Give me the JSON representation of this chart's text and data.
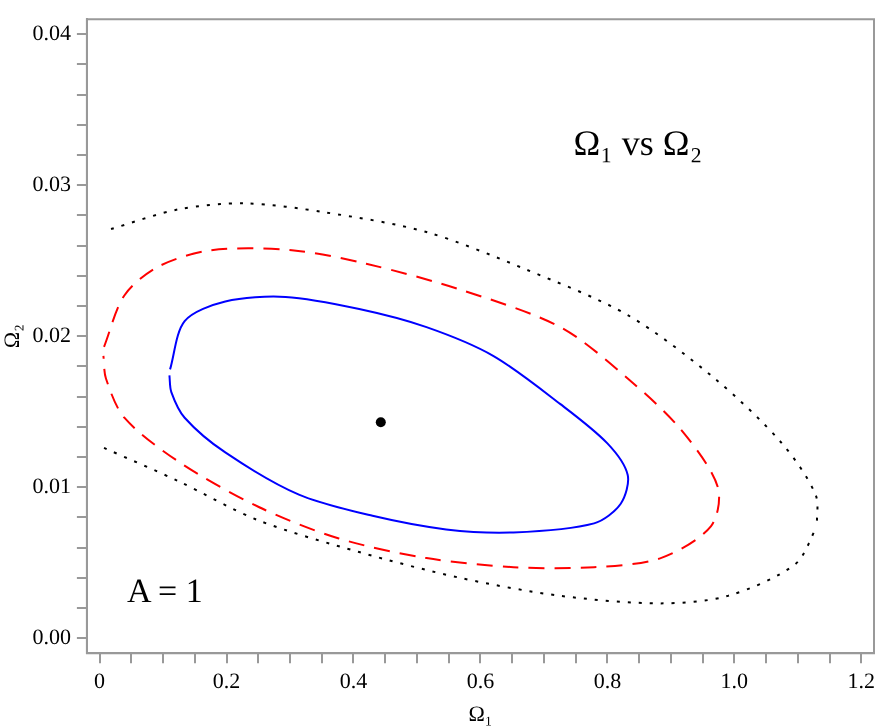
{
  "chart_data": {
    "type": "line",
    "title": "Ω₁ vs Ω₂",
    "xlabel": "Ω₁",
    "ylabel": "Ω₂",
    "annotations": [
      "A = 1"
    ],
    "xlim": [
      -0.02,
      1.22
    ],
    "ylim": [
      -0.001,
      0.041
    ],
    "xticks": [
      0,
      {
        "value": 0.05,
        "label": null
      },
      {
        "value": 0.1,
        "label": null
      },
      {
        "value": 0.15,
        "label": null
      },
      {
        "value": 0.2,
        "label": "0.2"
      },
      {
        "value": 0.25,
        "label": null
      },
      {
        "value": 0.3,
        "label": null
      },
      {
        "value": 0.35,
        "label": null
      },
      {
        "value": 0.4,
        "label": "0.4"
      },
      {
        "value": 0.45,
        "label": null
      },
      {
        "value": 0.5,
        "label": null
      },
      {
        "value": 0.55,
        "label": null
      },
      {
        "value": 0.6,
        "label": "0.6"
      },
      {
        "value": 0.65,
        "label": null
      },
      {
        "value": 0.7,
        "label": null
      },
      {
        "value": 0.75,
        "label": null
      },
      {
        "value": 0.8,
        "label": "0.8"
      },
      {
        "value": 0.85,
        "label": null
      },
      {
        "value": 0.9,
        "label": null
      },
      {
        "value": 0.95,
        "label": null
      },
      {
        "value": 1,
        "label": "1.0"
      },
      {
        "value": 1.05,
        "label": null
      },
      {
        "value": 1.1,
        "label": null
      },
      {
        "value": 1.15,
        "label": null
      },
      {
        "value": 1.2,
        "label": "1.2"
      }
    ],
    "yticks": [
      {
        "value": 0,
        "label": "0.00"
      },
      {
        "value": 0.002,
        "label": null
      },
      {
        "value": 0.004,
        "label": null
      },
      {
        "value": 0.006,
        "label": null
      },
      {
        "value": 0.008,
        "label": null
      },
      {
        "value": 0.01,
        "label": "0.01"
      },
      {
        "value": 0.012,
        "label": null
      },
      {
        "value": 0.014,
        "label": null
      },
      {
        "value": 0.016,
        "label": null
      },
      {
        "value": 0.018,
        "label": null
      },
      {
        "value": 0.02,
        "label": "0.02"
      },
      {
        "value": 0.022,
        "label": null
      },
      {
        "value": 0.024,
        "label": null
      },
      {
        "value": 0.026,
        "label": null
      },
      {
        "value": 0.028,
        "label": null
      },
      {
        "value": 0.03,
        "label": "0.03"
      },
      {
        "value": 0.032,
        "label": null
      },
      {
        "value": 0.034,
        "label": null
      },
      {
        "value": 0.036,
        "label": null
      },
      {
        "value": 0.038,
        "label": null
      },
      {
        "value": 0.04,
        "label": "0.04"
      }
    ],
    "grid": false,
    "legend": false,
    "series": [
      {
        "type": "line",
        "color": "#0000ff",
        "line_style": "solid",
        "marker": "none",
        "x": [
          0.111,
          0.134,
          0.198,
          0.293,
          0.409,
          0.515,
          0.62,
          0.726,
          0.8,
          0.832,
          0.821,
          0.779,
          0.652,
          0.546,
          0.43,
          0.314,
          0.198,
          0.134,
          0.113,
          0.11
        ],
        "values": [
          0.0178,
          0.021,
          0.0223,
          0.0226,
          0.0218,
          0.0206,
          0.0187,
          0.0155,
          0.0129,
          0.0108,
          0.0089,
          0.0076,
          0.007,
          0.0072,
          0.0081,
          0.0095,
          0.0123,
          0.0146,
          0.0163,
          0.0174
        ]
      },
      {
        "type": "line",
        "color": "#ff0000",
        "line_style": "dashed",
        "marker": "none",
        "x": [
          0.007,
          0.039,
          0.092,
          0.176,
          0.303,
          0.42,
          0.567,
          0.726,
          0.832,
          0.916,
          0.974,
          0.963,
          0.884,
          0.779,
          0.652,
          0.515,
          0.377,
          0.25,
          0.124,
          0.039,
          0.01,
          0.006
        ],
        "values": [
          0.0193,
          0.0227,
          0.0246,
          0.0257,
          0.0257,
          0.0248,
          0.0231,
          0.0206,
          0.0172,
          0.0138,
          0.01,
          0.0074,
          0.0053,
          0.0047,
          0.0047,
          0.0053,
          0.0066,
          0.0087,
          0.0117,
          0.0146,
          0.0172,
          0.0187
        ]
      },
      {
        "type": "line",
        "color": "#000000",
        "line_style": "dotted",
        "marker": "none",
        "x": [
          0.018,
          0.124,
          0.229,
          0.356,
          0.515,
          0.673,
          0.832,
          0.969,
          1.075,
          1.128,
          1.13
        ],
        "values": [
          0.0271,
          0.0284,
          0.0288,
          0.0282,
          0.0269,
          0.0244,
          0.0214,
          0.0172,
          0.0129,
          0.0095,
          0.0074
        ]
      },
      {
        "type": "line",
        "color": "#000000",
        "line_style": "dotted",
        "marker": "none",
        "x": [
          0.007,
          0.124,
          0.25,
          0.409,
          0.567,
          0.726,
          0.884,
          0.99,
          1.096,
          1.13
        ],
        "values": [
          0.0126,
          0.0104,
          0.0078,
          0.0057,
          0.004,
          0.0028,
          0.0023,
          0.0028,
          0.0049,
          0.0074
        ]
      },
      {
        "type": "scatter",
        "color": "#000000",
        "marker": "circle",
        "x": [
          0.443
        ],
        "values": [
          0.0143
        ]
      }
    ]
  }
}
